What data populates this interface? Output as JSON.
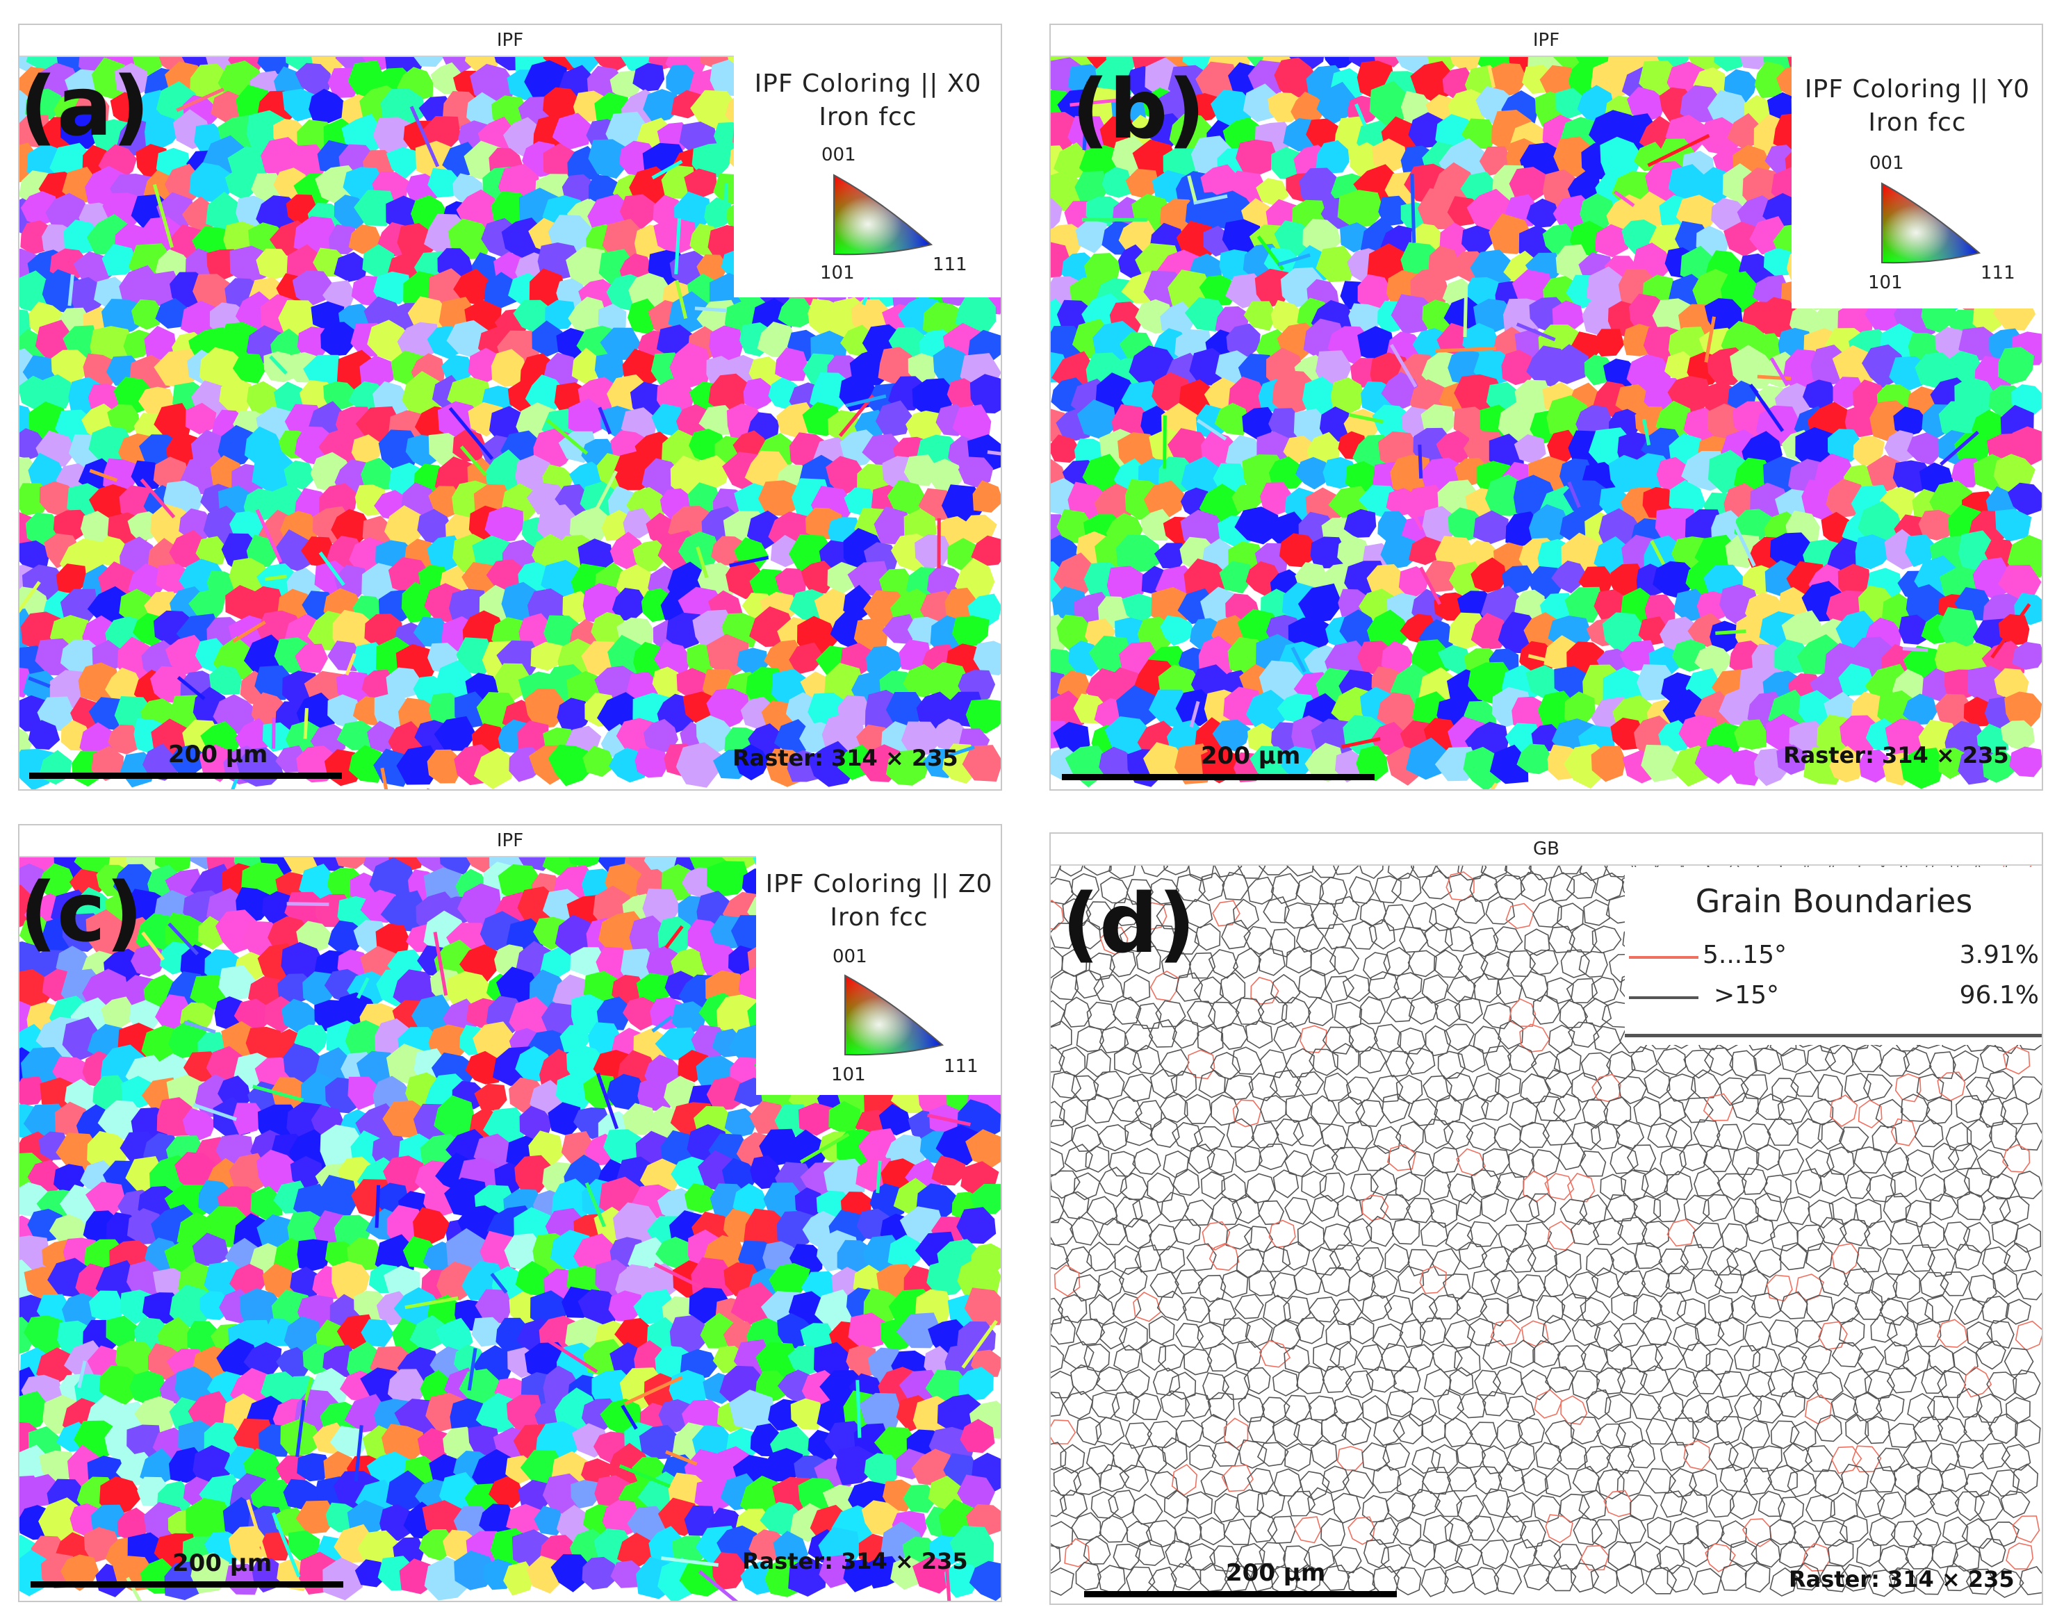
{
  "panels": [
    {
      "id": "a",
      "letter": "(a)",
      "header": "IPF",
      "legend_title": "IPF Coloring || X0",
      "legend_sub": "Iron fcc",
      "tri_top": "001",
      "tri_left": "101",
      "tri_right": "111",
      "scale_label": "200 µm",
      "raster": "Raster: 314 × 235",
      "seed": 11,
      "palette_bias": "mixed"
    },
    {
      "id": "b",
      "letter": "(b)",
      "header": "IPF",
      "legend_title": "IPF Coloring || Y0",
      "legend_sub": "Iron fcc",
      "tri_top": "001",
      "tri_left": "101",
      "tri_right": "111",
      "scale_label": "200 µm",
      "raster": "Raster: 314 × 235",
      "seed": 23,
      "palette_bias": "mixed"
    },
    {
      "id": "c",
      "letter": "(c)",
      "header": "IPF",
      "legend_title": "IPF Coloring || Z0",
      "legend_sub": "Iron fcc",
      "tri_top": "001",
      "tri_left": "101",
      "tri_right": "111",
      "scale_label": "200 µm",
      "raster": "Raster: 314 × 235",
      "seed": 37,
      "palette_bias": "blue"
    }
  ],
  "gb_panel": {
    "id": "d",
    "letter": "(d)",
    "header": "GB",
    "legend_title": "Grain Boundaries",
    "rows": [
      {
        "label": "5...15°",
        "value": "3.91%",
        "color": "#f07060"
      },
      {
        "label": ">15°",
        "value": "96.1%",
        "color": "#555555"
      }
    ],
    "scale_label": "200 µm",
    "raster": "Raster: 314 × 235",
    "seed": 53
  },
  "colors": {
    "grain_palette": [
      "#ff1a2a",
      "#ff2e5e",
      "#ff3fa6",
      "#ff50d8",
      "#e050ff",
      "#b858ff",
      "#7a4dff",
      "#3a24ff",
      "#1a1aff",
      "#1f56ff",
      "#22a8ff",
      "#1ad8ff",
      "#22ffe6",
      "#24ffb0",
      "#2bff6a",
      "#19ff22",
      "#5cff2a",
      "#9dff36",
      "#d8ff50",
      "#ffe060",
      "#ff8a40",
      "#ff6a80",
      "#c0ff9a",
      "#9ae0ff",
      "#d0a0ff"
    ],
    "blue_bias": [
      "#2a1cff",
      "#3b2aff",
      "#1e3aff",
      "#4a4aff",
      "#6a35ff",
      "#1a1aff",
      "#2aa0ff",
      "#1ae6ff",
      "#22ffd0",
      "#1dff3a",
      "#33ff22",
      "#ff3aa8",
      "#ff50dd",
      "#c050ff",
      "#ff2a3a",
      "#aaffee",
      "#7aa0ff"
    ]
  }
}
